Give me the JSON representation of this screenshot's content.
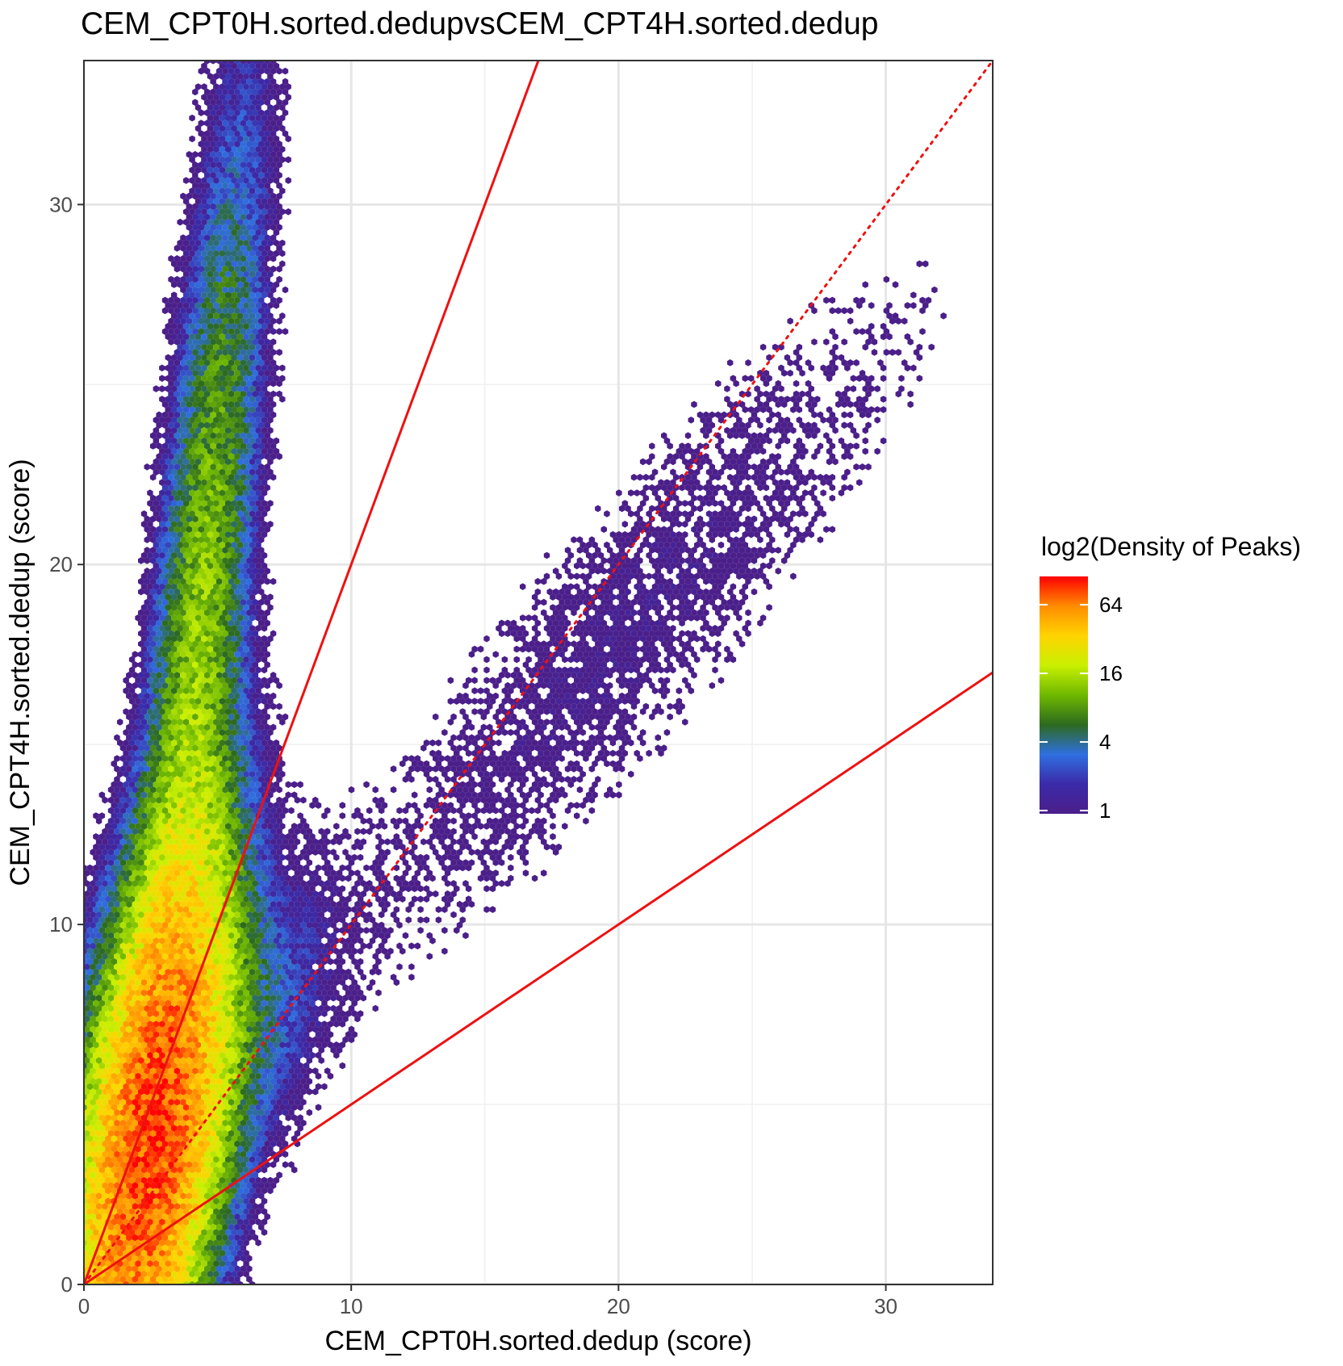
{
  "chart_data": {
    "type": "scatter",
    "subtype": "hexbin-density",
    "title": "CEM_CPT0H.sorted.dedupvsCEM_CPT4H.sorted.dedup",
    "xlabel": "CEM_CPT0H.sorted.dedup (score)",
    "ylabel": "CEM_CPT4H.sorted.dedup (score)",
    "xlim": [
      0,
      34
    ],
    "ylim": [
      0,
      34
    ],
    "x_ticks": [
      0,
      10,
      20,
      30
    ],
    "y_ticks": [
      0,
      10,
      20,
      30
    ],
    "grid": true,
    "legend": {
      "title": "log2(Density of Peaks)",
      "placement": "right",
      "ticks": [
        "64",
        "16",
        "4",
        "1"
      ],
      "tick_values": [
        64,
        16,
        4,
        1
      ],
      "colors": [
        "#ff0000",
        "#ff8c00",
        "#ffd400",
        "#c8f000",
        "#6fb800",
        "#2c6a1f",
        "#2f6fe0",
        "#3b2aa8",
        "#4b1f8a"
      ]
    },
    "reference_lines": [
      {
        "slope": 2,
        "intercept": 0,
        "style": "solid",
        "color": "#ee1111"
      },
      {
        "slope": 1,
        "intercept": 0,
        "style": "dotted",
        "color": "#ee1111"
      },
      {
        "slope": 0.5,
        "intercept": 0,
        "style": "solid",
        "color": "#ee1111"
      }
    ],
    "density_clusters": [
      {
        "x_center": 2.5,
        "y_center": 4.0,
        "x_spread": 1.6,
        "y_spread": 4.5,
        "peak_density": 80,
        "corr": 0.5
      },
      {
        "x_center": 4.2,
        "y_center": 17.0,
        "x_spread": 1.3,
        "y_spread": 8.5,
        "peak_density": 12,
        "corr": 0.7
      },
      {
        "x_center": 6.0,
        "y_center": 6.5,
        "x_spread": 2.0,
        "y_spread": 2.8,
        "peak_density": 3,
        "corr": 0.6
      },
      {
        "x_center": 20.0,
        "y_center": 18.0,
        "x_spread": 7.5,
        "y_spread": 6.5,
        "peak_density": 1,
        "corr": 0.9
      }
    ]
  }
}
